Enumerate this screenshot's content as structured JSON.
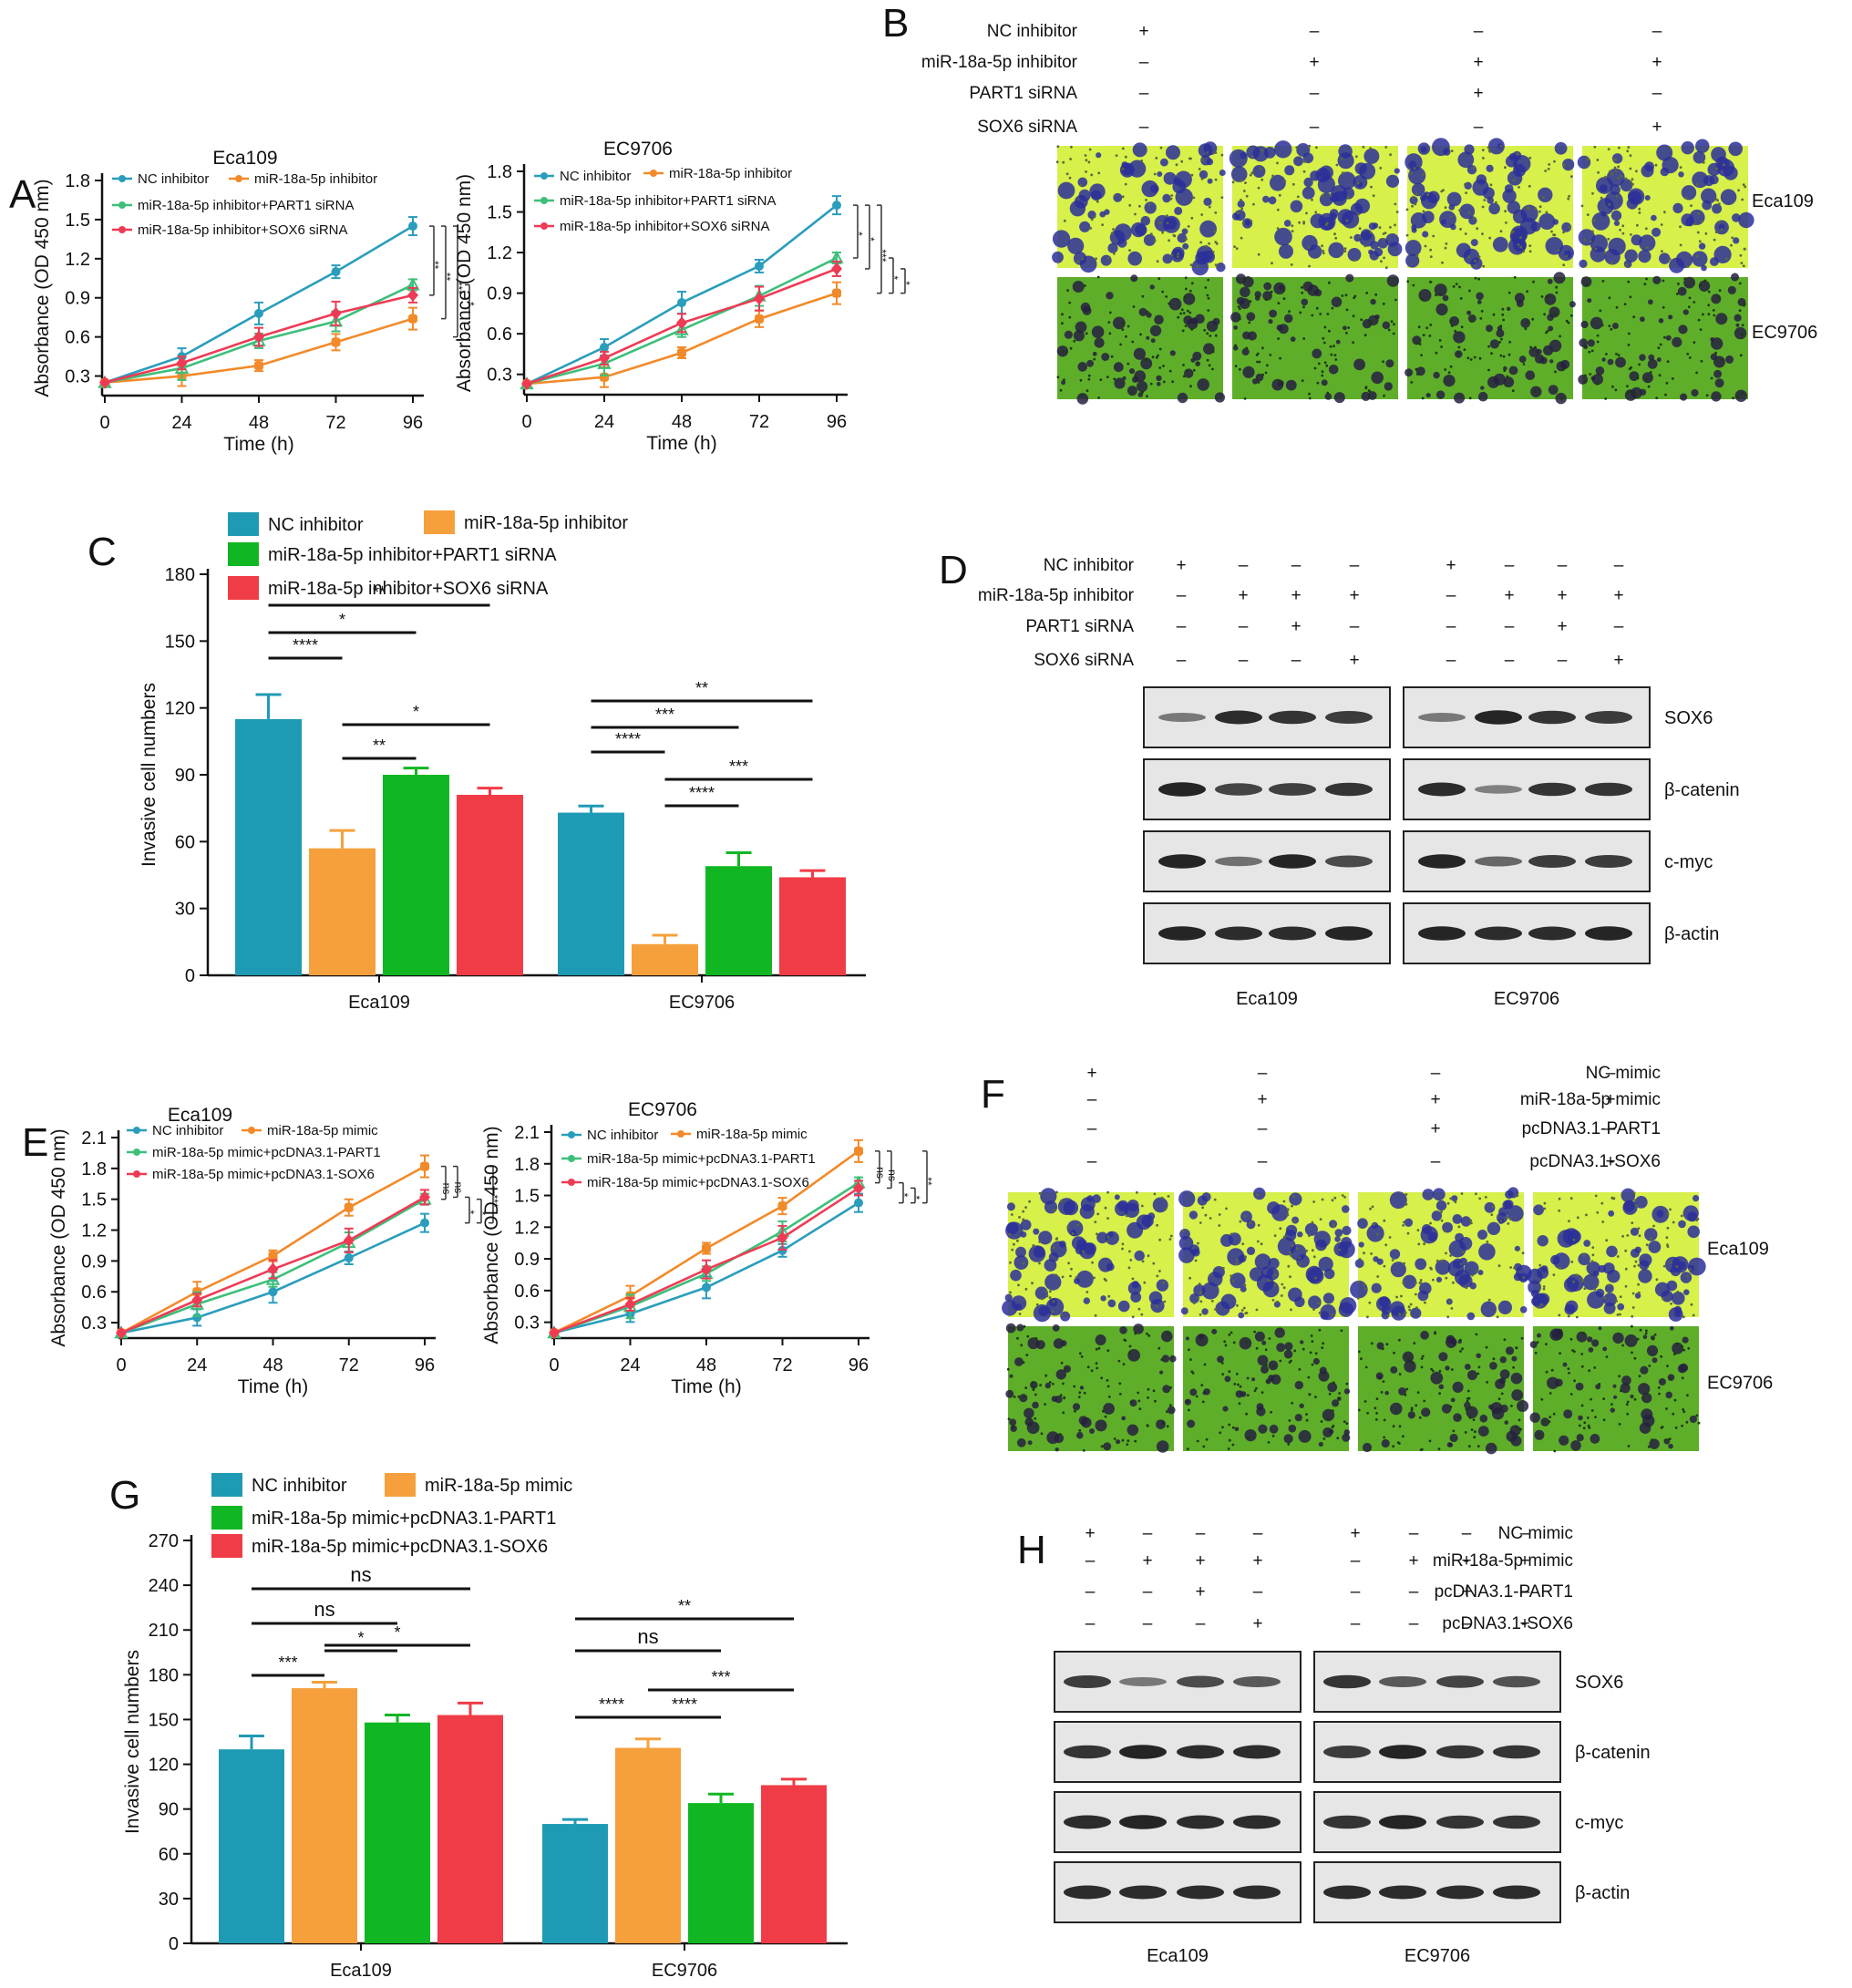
{
  "colors": {
    "nc": "#1f9ab4",
    "mir": "#f5a03c",
    "part1": "#10b722",
    "sox6": "#f03c46",
    "line_nc": "#2a9dbc",
    "line_mir": "#f28a2a",
    "line_part1": "#3dbf7a",
    "line_sox6": "#ee3b55",
    "eca_micro_bg": "#d7f04a",
    "ec_micro_bg": "#5fae2a",
    "micro_cell": "#2c2f9a",
    "blot_band": "#1d1d1d"
  },
  "panel_letters": [
    "A",
    "B",
    "C",
    "D",
    "E",
    "F",
    "G",
    "H"
  ],
  "chart_data": [
    {
      "id": "A1",
      "type": "line",
      "title": "Eca109",
      "xlabel": "Time (h)",
      "ylabel": "Absorbance (OD 450 nm)",
      "x": [
        0,
        24,
        48,
        72,
        96
      ],
      "x_ticks": [
        "0",
        "24",
        "48",
        "72",
        "96"
      ],
      "ylim": [
        0.15,
        1.8
      ],
      "y_ticks": [
        "0.3",
        "0.6",
        "0.9",
        "1.2",
        "1.5",
        "1.8"
      ],
      "series": [
        {
          "name": "NC inhibitor",
          "values": [
            0.25,
            0.45,
            0.78,
            1.1,
            1.45
          ]
        },
        {
          "name": "miR-18a-5p inhibitor",
          "values": [
            0.25,
            0.3,
            0.38,
            0.56,
            0.74
          ]
        },
        {
          "name": "miR-18a-5p inhibitor+PART1 siRNA",
          "values": [
            0.25,
            0.36,
            0.57,
            0.72,
            1.0
          ]
        },
        {
          "name": "miR-18a-5p inhibitor+SOX6 siRNA",
          "values": [
            0.25,
            0.4,
            0.6,
            0.78,
            0.92
          ]
        }
      ],
      "significance": [
        "**",
        "**",
        "***",
        "*"
      ]
    },
    {
      "id": "A2",
      "type": "line",
      "title": "EC9706",
      "xlabel": "Time (h)",
      "ylabel": "Absorbance (OD 450 nm)",
      "x": [
        0,
        24,
        48,
        72,
        96
      ],
      "x_ticks": [
        "0",
        "24",
        "48",
        "72",
        "96"
      ],
      "ylim": [
        0.15,
        1.8
      ],
      "y_ticks": [
        "0.3",
        "0.6",
        "0.9",
        "1.2",
        "1.5",
        "1.8"
      ],
      "series": [
        {
          "name": "NC inhibitor",
          "values": [
            0.23,
            0.5,
            0.83,
            1.1,
            1.55
          ]
        },
        {
          "name": "miR-18a-5p inhibitor",
          "values": [
            0.23,
            0.28,
            0.46,
            0.71,
            0.9
          ]
        },
        {
          "name": "miR-18a-5p inhibitor+PART1 siRNA",
          "values": [
            0.23,
            0.38,
            0.63,
            0.88,
            1.16
          ]
        },
        {
          "name": "miR-18a-5p inhibitor+SOX6 siRNA",
          "values": [
            0.23,
            0.42,
            0.68,
            0.86,
            1.08
          ]
        }
      ],
      "significance": [
        "*",
        "*",
        "***",
        "*",
        "*"
      ]
    },
    {
      "id": "C",
      "type": "bar",
      "ylabel": "Invasive cell numbers",
      "categories": [
        "Eca109",
        "EC9706"
      ],
      "ylim": [
        0,
        180
      ],
      "y_ticks": [
        "0",
        "30",
        "60",
        "90",
        "120",
        "150",
        "180"
      ],
      "series": [
        {
          "name": "NC inhibitor",
          "values": [
            115,
            73
          ],
          "errors": [
            11,
            3
          ]
        },
        {
          "name": "miR-18a-5p inhibitor",
          "values": [
            57,
            14
          ],
          "errors": [
            8,
            4
          ]
        },
        {
          "name": "miR-18a-5p inhibitor+PART1 siRNA",
          "values": [
            90,
            49
          ],
          "errors": [
            3,
            6
          ]
        },
        {
          "name": "miR-18a-5p inhibitor+SOX6 siRNA",
          "values": [
            81,
            44
          ],
          "errors": [
            3,
            3
          ]
        }
      ],
      "significance": [
        {
          "group": 0,
          "from": 0,
          "to": 1,
          "label": "****"
        },
        {
          "group": 0,
          "from": 0,
          "to": 2,
          "label": "*"
        },
        {
          "group": 0,
          "from": 0,
          "to": 3,
          "label": "**"
        },
        {
          "group": 0,
          "from": 1,
          "to": 2,
          "label": "**"
        },
        {
          "group": 0,
          "from": 1,
          "to": 3,
          "label": "*"
        },
        {
          "group": 1,
          "from": 0,
          "to": 1,
          "label": "****"
        },
        {
          "group": 1,
          "from": 0,
          "to": 2,
          "label": "***"
        },
        {
          "group": 1,
          "from": 0,
          "to": 3,
          "label": "**"
        },
        {
          "group": 1,
          "from": 1,
          "to": 2,
          "label": "****"
        },
        {
          "group": 1,
          "from": 1,
          "to": 3,
          "label": "***"
        }
      ]
    },
    {
      "id": "E1",
      "type": "line",
      "title": "Eca109",
      "xlabel": "Time (h)",
      "ylabel": "Absorbance (OD 450 nm)",
      "x": [
        0,
        24,
        48,
        72,
        96
      ],
      "x_ticks": [
        "0",
        "24",
        "48",
        "72",
        "96"
      ],
      "ylim": [
        0.15,
        2.1
      ],
      "y_ticks": [
        "0.3",
        "0.6",
        "0.9",
        "1.2",
        "1.5",
        "1.8",
        "2.1"
      ],
      "series": [
        {
          "name": "NC inhibitor",
          "values": [
            0.2,
            0.35,
            0.6,
            0.93,
            1.27
          ]
        },
        {
          "name": "miR-18a-5p mimic",
          "values": [
            0.2,
            0.6,
            0.95,
            1.42,
            1.82
          ]
        },
        {
          "name": "miR-18a-5p mimic+pcDNA3.1-PART1",
          "values": [
            0.2,
            0.48,
            0.72,
            1.08,
            1.5
          ]
        },
        {
          "name": "miR-18a-5p mimic+pcDNA3.1-SOX6",
          "values": [
            0.2,
            0.52,
            0.82,
            1.1,
            1.52
          ]
        }
      ],
      "significance": [
        "ns",
        "ns",
        "*",
        "*",
        "***"
      ]
    },
    {
      "id": "E2",
      "type": "line",
      "title": "EC9706",
      "xlabel": "Time (h)",
      "ylabel": "Absorbance (OD 450 nm)",
      "x": [
        0,
        24,
        48,
        72,
        96
      ],
      "x_ticks": [
        "0",
        "24",
        "48",
        "72",
        "96"
      ],
      "ylim": [
        0.15,
        2.1
      ],
      "y_ticks": [
        "0.3",
        "0.6",
        "0.9",
        "1.2",
        "1.5",
        "1.8",
        "2.1"
      ],
      "series": [
        {
          "name": "NC inhibitor",
          "values": [
            0.2,
            0.38,
            0.63,
            0.98,
            1.43
          ]
        },
        {
          "name": "miR-18a-5p mimic",
          "values": [
            0.2,
            0.55,
            1.0,
            1.4,
            1.92
          ]
        },
        {
          "name": "miR-18a-5p mimic+pcDNA3.1-PART1",
          "values": [
            0.2,
            0.45,
            0.76,
            1.16,
            1.62
          ]
        },
        {
          "name": "miR-18a-5p mimic+pcDNA3.1-SOX6",
          "values": [
            0.2,
            0.47,
            0.8,
            1.1,
            1.57
          ]
        }
      ],
      "significance": [
        "ns",
        "ns",
        "*",
        "*",
        "**"
      ]
    },
    {
      "id": "G",
      "type": "bar",
      "ylabel": "Invasive cell numbers",
      "categories": [
        "Eca109",
        "EC9706"
      ],
      "ylim": [
        0,
        270
      ],
      "y_ticks": [
        "0",
        "30",
        "60",
        "90",
        "120",
        "150",
        "180",
        "210",
        "240",
        "270"
      ],
      "series": [
        {
          "name": "NC inhibitor",
          "values": [
            130,
            80
          ],
          "errors": [
            9,
            3
          ]
        },
        {
          "name": "miR-18a-5p mimic",
          "values": [
            171,
            131
          ],
          "errors": [
            4,
            6
          ]
        },
        {
          "name": "miR-18a-5p mimic+pcDNA3.1-PART1",
          "values": [
            148,
            94
          ],
          "errors": [
            5,
            6
          ]
        },
        {
          "name": "miR-18a-5p mimic+pcDNA3.1-SOX6",
          "values": [
            153,
            106
          ],
          "errors": [
            8,
            4
          ]
        }
      ],
      "significance": [
        {
          "group": 0,
          "from": 0,
          "to": 1,
          "label": "***"
        },
        {
          "group": 0,
          "from": 1,
          "to": 2,
          "label": "*"
        },
        {
          "group": 0,
          "from": 1,
          "to": 3,
          "label": "*"
        },
        {
          "group": 0,
          "from": 0,
          "to": 2,
          "label": "ns"
        },
        {
          "group": 0,
          "from": 0,
          "to": 3,
          "label": "ns"
        },
        {
          "group": 1,
          "from": 0,
          "to": 1,
          "label": "****"
        },
        {
          "group": 1,
          "from": 1,
          "to": 2,
          "label": "****"
        },
        {
          "group": 1,
          "from": 1,
          "to": 3,
          "label": "***"
        },
        {
          "group": 1,
          "from": 0,
          "to": 2,
          "label": "ns"
        },
        {
          "group": 1,
          "from": 0,
          "to": 3,
          "label": "**"
        }
      ]
    }
  ],
  "panel_B": {
    "rows": [
      "NC inhibitor",
      "miR-18a-5p inhibitor",
      "PART1 siRNA",
      "SOX6 siRNA"
    ],
    "signs": [
      [
        "+",
        "–",
        "–",
        "–"
      ],
      [
        "–",
        "+",
        "+",
        "+"
      ],
      [
        "–",
        "–",
        "+",
        "–"
      ],
      [
        "–",
        "–",
        "–",
        "+"
      ]
    ],
    "lines": [
      "Eca109",
      "EC9706"
    ]
  },
  "panel_D": {
    "rows": [
      "NC inhibitor",
      "miR-18a-5p inhibitor",
      "PART1 siRNA",
      "SOX6 siRNA"
    ],
    "signs": [
      [
        "+",
        "–",
        "–",
        "–"
      ],
      [
        "–",
        "+",
        "+",
        "+"
      ],
      [
        "–",
        "–",
        "+",
        "–"
      ],
      [
        "–",
        "–",
        "–",
        "+"
      ]
    ],
    "proteins": [
      "SOX6",
      "β-catenin",
      "c-myc",
      "β-actin"
    ],
    "groups": [
      "Eca109",
      "EC9706"
    ],
    "band_intensity": [
      [
        [
          0.4,
          0.9,
          0.85,
          0.8
        ],
        [
          0.4,
          0.95,
          0.85,
          0.8
        ]
      ],
      [
        [
          0.95,
          0.75,
          0.78,
          0.85
        ],
        [
          0.9,
          0.35,
          0.85,
          0.85
        ]
      ],
      [
        [
          0.95,
          0.45,
          0.95,
          0.7
        ],
        [
          0.95,
          0.5,
          0.8,
          0.8
        ]
      ],
      [
        [
          0.95,
          0.9,
          0.9,
          0.95
        ],
        [
          0.95,
          0.9,
          0.9,
          0.95
        ]
      ]
    ]
  },
  "panel_F": {
    "rows": [
      "NC mimic",
      "miR-18a-5p mimic",
      "pcDNA3.1-PART1",
      "pcDNA3.1-SOX6"
    ],
    "signs": [
      [
        "+",
        "–",
        "–",
        "–"
      ],
      [
        "–",
        "+",
        "+",
        "+"
      ],
      [
        "–",
        "–",
        "+",
        "–"
      ],
      [
        "–",
        "–",
        "–",
        "+"
      ]
    ],
    "lines": [
      "Eca109",
      "EC9706"
    ]
  },
  "panel_H": {
    "rows": [
      "NC mimic",
      "miR-18a-5p mimic",
      "pcDNA3.1-PART1",
      "pcDNA3.1-SOX6"
    ],
    "signs": [
      [
        "+",
        "–",
        "–",
        "–"
      ],
      [
        "–",
        "+",
        "+",
        "+"
      ],
      [
        "–",
        "–",
        "+",
        "–"
      ],
      [
        "–",
        "–",
        "–",
        "+"
      ]
    ],
    "proteins": [
      "SOX6",
      "β-catenin",
      "c-myc",
      "β-actin"
    ],
    "groups": [
      "Eca109",
      "EC9706"
    ],
    "band_intensity": [
      [
        [
          0.8,
          0.4,
          0.7,
          0.6
        ],
        [
          0.85,
          0.6,
          0.75,
          0.65
        ]
      ],
      [
        [
          0.85,
          0.95,
          0.9,
          0.9
        ],
        [
          0.8,
          0.95,
          0.85,
          0.85
        ]
      ],
      [
        [
          0.9,
          0.95,
          0.9,
          0.9
        ],
        [
          0.85,
          0.95,
          0.85,
          0.85
        ]
      ],
      [
        [
          0.9,
          0.9,
          0.9,
          0.9
        ],
        [
          0.9,
          0.9,
          0.9,
          0.9
        ]
      ]
    ]
  }
}
